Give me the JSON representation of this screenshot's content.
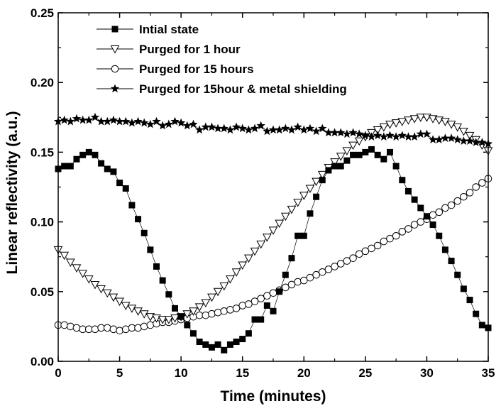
{
  "chart_data": {
    "type": "scatter",
    "title": "",
    "xlabel": "Time (minutes)",
    "ylabel": "Linear reflectivity  (a.u.)",
    "xlim": [
      0,
      35
    ],
    "ylim": [
      0,
      0.25
    ],
    "xticks": [
      0,
      5,
      10,
      15,
      20,
      25,
      30,
      35
    ],
    "xtick_labels": [
      "0",
      "5",
      "10",
      "15",
      "20",
      "25",
      "30",
      "35"
    ],
    "yticks": [
      0,
      0.05,
      0.1,
      0.15,
      0.2,
      0.25
    ],
    "ytick_labels": [
      "0.00",
      "0.05",
      "0.10",
      "0.15",
      "0.20",
      "0.25"
    ],
    "legend_position": "top-center",
    "series": [
      {
        "name": "Intial state",
        "marker": "filled-square",
        "color": "#000000",
        "x": [
          0,
          0.5,
          1,
          1.5,
          2,
          2.5,
          3,
          3.5,
          4,
          4.5,
          5,
          5.5,
          6,
          6.5,
          7,
          7.5,
          8,
          8.5,
          9,
          9.5,
          10,
          10.5,
          11,
          11.5,
          12,
          12.5,
          13,
          13.5,
          14,
          14.5,
          15,
          15.5,
          16,
          16.5,
          17,
          17.5,
          18,
          18.5,
          19,
          19.5,
          20,
          20.5,
          21,
          21.5,
          22,
          22.5,
          23,
          23.5,
          24,
          24.5,
          25,
          25.5,
          26,
          26.5,
          27,
          27.5,
          28,
          28.5,
          29,
          29.5,
          30,
          30.5,
          31,
          31.5,
          32,
          32.5,
          33,
          33.5,
          34,
          34.5,
          35
        ],
        "y": [
          0.138,
          0.14,
          0.14,
          0.145,
          0.148,
          0.15,
          0.148,
          0.142,
          0.138,
          0.136,
          0.128,
          0.124,
          0.112,
          0.102,
          0.092,
          0.08,
          0.068,
          0.058,
          0.048,
          0.038,
          0.032,
          0.026,
          0.02,
          0.014,
          0.012,
          0.01,
          0.012,
          0.008,
          0.012,
          0.014,
          0.016,
          0.02,
          0.03,
          0.03,
          0.04,
          0.036,
          0.05,
          0.062,
          0.074,
          0.09,
          0.09,
          0.106,
          0.118,
          0.13,
          0.137,
          0.14,
          0.14,
          0.144,
          0.148,
          0.148,
          0.15,
          0.152,
          0.148,
          0.145,
          0.15,
          0.14,
          0.13,
          0.122,
          0.116,
          0.11,
          0.104,
          0.098,
          0.09,
          0.08,
          0.072,
          0.062,
          0.052,
          0.044,
          0.034,
          0.026,
          0.024
        ]
      },
      {
        "name": "Purged for 1 hour",
        "marker": "open-triangle-down",
        "color": "#000000",
        "x": [
          0,
          0.5,
          1,
          1.5,
          2,
          2.5,
          3,
          3.5,
          4,
          4.5,
          5,
          5.5,
          6,
          6.5,
          7,
          7.5,
          8,
          8.5,
          9,
          9.5,
          10,
          10.5,
          11,
          11.5,
          12,
          12.5,
          13,
          13.5,
          14,
          14.5,
          15,
          15.5,
          16,
          16.5,
          17,
          17.5,
          18,
          18.5,
          19,
          19.5,
          20,
          20.5,
          21,
          21.5,
          22,
          22.5,
          23,
          23.5,
          24,
          24.5,
          25,
          25.5,
          26,
          26.5,
          27,
          27.5,
          28,
          28.5,
          29,
          29.5,
          30,
          30.5,
          31,
          31.5,
          32,
          32.5,
          33,
          33.5,
          34,
          34.5,
          35
        ],
        "y": [
          0.08,
          0.076,
          0.071,
          0.067,
          0.063,
          0.059,
          0.055,
          0.052,
          0.049,
          0.046,
          0.043,
          0.04,
          0.038,
          0.036,
          0.034,
          0.032,
          0.031,
          0.03,
          0.03,
          0.031,
          0.032,
          0.034,
          0.036,
          0.039,
          0.042,
          0.046,
          0.05,
          0.054,
          0.059,
          0.064,
          0.069,
          0.074,
          0.079,
          0.084,
          0.089,
          0.094,
          0.099,
          0.104,
          0.109,
          0.114,
          0.119,
          0.124,
          0.129,
          0.134,
          0.139,
          0.143,
          0.147,
          0.151,
          0.155,
          0.158,
          0.161,
          0.164,
          0.166,
          0.168,
          0.17,
          0.171,
          0.172,
          0.173,
          0.174,
          0.175,
          0.175,
          0.174,
          0.173,
          0.172,
          0.17,
          0.168,
          0.165,
          0.162,
          0.159,
          0.155,
          0.151
        ]
      },
      {
        "name": "Purged for 15 hours",
        "marker": "open-circle",
        "color": "#000000",
        "x": [
          0,
          0.5,
          1,
          1.5,
          2,
          2.5,
          3,
          3.5,
          4,
          4.5,
          5,
          5.5,
          6,
          6.5,
          7,
          7.5,
          8,
          8.5,
          9,
          9.5,
          10,
          10.5,
          11,
          11.5,
          12,
          12.5,
          13,
          13.5,
          14,
          14.5,
          15,
          15.5,
          16,
          16.5,
          17,
          17.5,
          18,
          18.5,
          19,
          19.5,
          20,
          20.5,
          21,
          21.5,
          22,
          22.5,
          23,
          23.5,
          24,
          24.5,
          25,
          25.5,
          26,
          26.5,
          27,
          27.5,
          28,
          28.5,
          29,
          29.5,
          30,
          30.5,
          31,
          31.5,
          32,
          32.5,
          33,
          33.5,
          34,
          34.5,
          35
        ],
        "y": [
          0.026,
          0.026,
          0.025,
          0.024,
          0.023,
          0.023,
          0.023,
          0.024,
          0.024,
          0.023,
          0.022,
          0.023,
          0.024,
          0.024,
          0.025,
          0.026,
          0.027,
          0.028,
          0.028,
          0.029,
          0.03,
          0.031,
          0.032,
          0.033,
          0.033,
          0.034,
          0.035,
          0.036,
          0.037,
          0.038,
          0.04,
          0.041,
          0.043,
          0.045,
          0.047,
          0.049,
          0.051,
          0.053,
          0.055,
          0.057,
          0.058,
          0.06,
          0.062,
          0.064,
          0.066,
          0.068,
          0.07,
          0.072,
          0.074,
          0.077,
          0.079,
          0.081,
          0.083,
          0.086,
          0.088,
          0.09,
          0.093,
          0.095,
          0.098,
          0.1,
          0.102,
          0.105,
          0.107,
          0.11,
          0.112,
          0.115,
          0.118,
          0.121,
          0.125,
          0.128,
          0.131
        ]
      },
      {
        "name": "Purged for 15hour & metal shielding",
        "marker": "filled-star",
        "color": "#000000",
        "x": [
          0,
          0.5,
          1,
          1.5,
          2,
          2.5,
          3,
          3.5,
          4,
          4.5,
          5,
          5.5,
          6,
          6.5,
          7,
          7.5,
          8,
          8.5,
          9,
          9.5,
          10,
          10.5,
          11,
          11.5,
          12,
          12.5,
          13,
          13.5,
          14,
          14.5,
          15,
          15.5,
          16,
          16.5,
          17,
          17.5,
          18,
          18.5,
          19,
          19.5,
          20,
          20.5,
          21,
          21.5,
          22,
          22.5,
          23,
          23.5,
          24,
          24.5,
          25,
          25.5,
          26,
          26.5,
          27,
          27.5,
          28,
          28.5,
          29,
          29.5,
          30,
          30.5,
          31,
          31.5,
          32,
          32.5,
          33,
          33.5,
          34,
          34.5,
          35
        ],
        "y": [
          0.172,
          0.173,
          0.172,
          0.174,
          0.173,
          0.173,
          0.175,
          0.172,
          0.172,
          0.173,
          0.172,
          0.172,
          0.171,
          0.172,
          0.171,
          0.17,
          0.172,
          0.169,
          0.17,
          0.172,
          0.171,
          0.169,
          0.17,
          0.166,
          0.168,
          0.168,
          0.167,
          0.167,
          0.166,
          0.168,
          0.167,
          0.166,
          0.167,
          0.169,
          0.165,
          0.166,
          0.166,
          0.167,
          0.166,
          0.168,
          0.166,
          0.167,
          0.165,
          0.167,
          0.164,
          0.164,
          0.164,
          0.163,
          0.164,
          0.163,
          0.162,
          0.161,
          0.162,
          0.161,
          0.162,
          0.161,
          0.162,
          0.161,
          0.161,
          0.163,
          0.163,
          0.159,
          0.159,
          0.16,
          0.16,
          0.159,
          0.158,
          0.158,
          0.157,
          0.157,
          0.156
        ]
      }
    ]
  }
}
